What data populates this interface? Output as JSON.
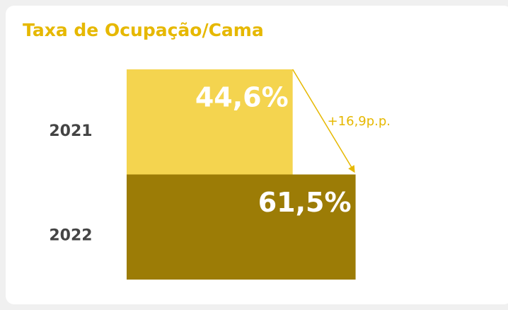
{
  "chart_data": {
    "type": "barh",
    "title": "Taxa de Ocupação/Cama",
    "categories": [
      "2021",
      "2022"
    ],
    "series": [
      {
        "name": null,
        "colors": [
          "#f4d44f",
          "#9c7c06"
        ],
        "values": [
          44.6,
          61.5
        ],
        "value_labels": [
          "44,6%",
          "61,5%"
        ]
      }
    ],
    "xlim": [
      0,
      65
    ],
    "annotation": "+16,9p.p."
  }
}
